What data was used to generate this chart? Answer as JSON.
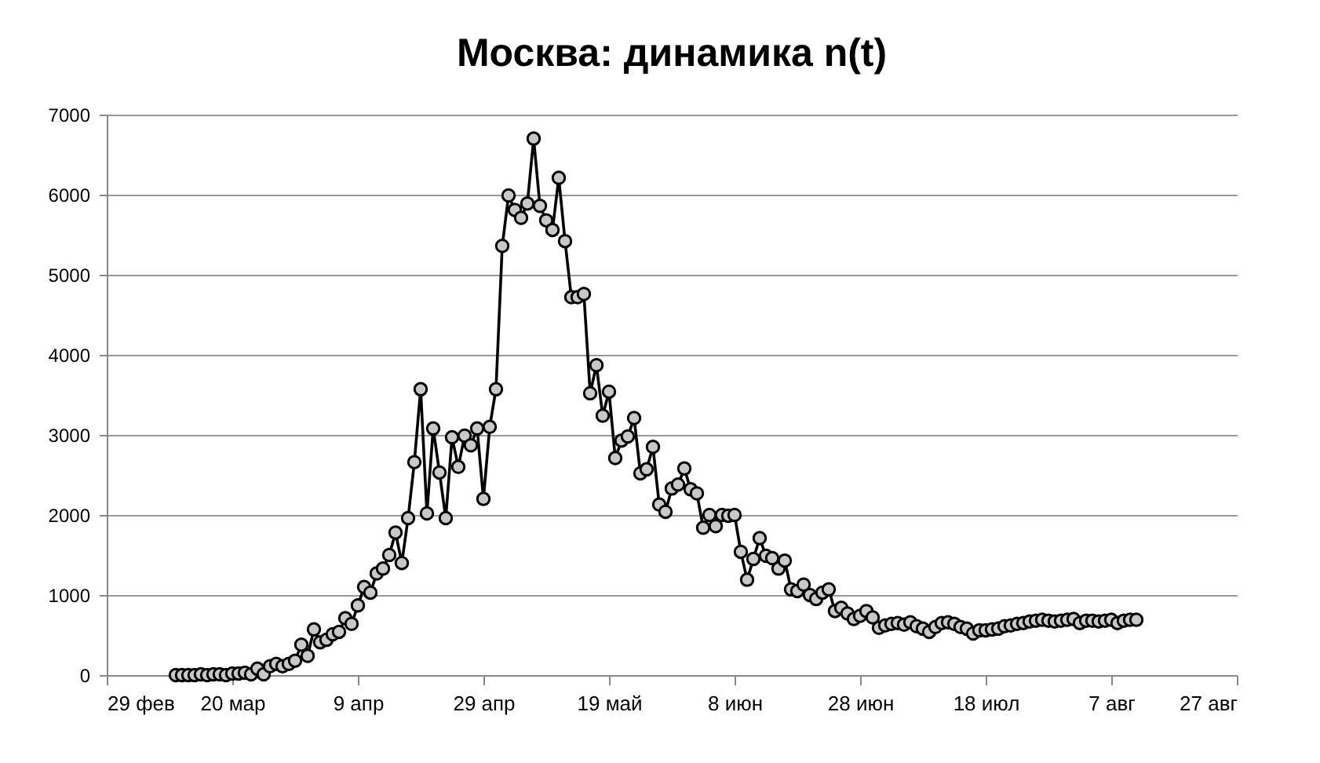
{
  "chart_data": {
    "type": "line",
    "title": "Москва: динамика n(t)",
    "x": [
      "--03-11",
      "--03-12",
      "--03-13",
      "--03-14",
      "--03-15",
      "--03-16",
      "--03-17",
      "--03-18",
      "--03-19",
      "--03-20",
      "--03-21",
      "--03-22",
      "--03-23",
      "--03-24",
      "--03-25",
      "--03-26",
      "--03-27",
      "--03-28",
      "--03-29",
      "--03-30",
      "--03-31",
      "--04-01",
      "--04-02",
      "--04-03",
      "--04-04",
      "--04-05",
      "--04-06",
      "--04-07",
      "--04-08",
      "--04-09",
      "--04-10",
      "--04-11",
      "--04-12",
      "--04-13",
      "--04-14",
      "--04-15",
      "--04-16",
      "--04-17",
      "--04-18",
      "--04-19",
      "--04-20",
      "--04-21",
      "--04-22",
      "--04-23",
      "--04-24",
      "--04-25",
      "--04-26",
      "--04-27",
      "--04-28",
      "--04-29",
      "--04-30",
      "--05-01",
      "--05-02",
      "--05-03",
      "--05-04",
      "--05-05",
      "--05-06",
      "--05-07",
      "--05-08",
      "--05-09",
      "--05-10",
      "--05-11",
      "--05-12",
      "--05-13",
      "--05-14",
      "--05-15",
      "--05-16",
      "--05-17",
      "--05-18",
      "--05-19",
      "--05-20",
      "--05-21",
      "--05-22",
      "--05-23",
      "--05-24",
      "--05-25",
      "--05-26",
      "--05-27",
      "--05-28",
      "--05-29",
      "--05-30",
      "--05-31",
      "--06-01",
      "--06-02",
      "--06-03",
      "--06-04",
      "--06-05",
      "--06-06",
      "--06-07",
      "--06-08",
      "--06-09",
      "--06-10",
      "--06-11",
      "--06-12",
      "--06-13",
      "--06-14",
      "--06-15",
      "--06-16",
      "--06-17",
      "--06-18",
      "--06-19",
      "--06-20",
      "--06-21",
      "--06-22",
      "--06-23",
      "--06-24",
      "--06-25",
      "--06-26",
      "--06-27",
      "--06-28",
      "--06-29",
      "--06-30",
      "--07-01",
      "--07-02",
      "--07-03",
      "--07-04",
      "--07-05",
      "--07-06",
      "--07-07",
      "--07-08",
      "--07-09",
      "--07-10",
      "--07-11",
      "--07-12",
      "--07-13",
      "--07-14",
      "--07-15",
      "--07-16",
      "--07-17",
      "--07-18",
      "--07-19",
      "--07-20",
      "--07-21",
      "--07-22",
      "--07-23",
      "--07-24",
      "--07-25",
      "--07-26",
      "--07-27",
      "--07-28",
      "--07-29",
      "--07-30",
      "--07-31",
      "--08-01",
      "--08-02",
      "--08-03",
      "--08-04",
      "--08-05",
      "--08-06",
      "--08-07",
      "--08-08",
      "--08-09",
      "--08-10",
      "--08-11"
    ],
    "series": [
      {
        "color": "#c8c8c8",
        "values": [
          0,
          0,
          0,
          0,
          10,
          0,
          10,
          10,
          0,
          20,
          20,
          30,
          10,
          80,
          10,
          110,
          140,
          110,
          140,
          180,
          380,
          240,
          570,
          410,
          440,
          510,
          540,
          710,
          640,
          870,
          1100,
          1030,
          1270,
          1330,
          1500,
          1780,
          1400,
          1960,
          2660,
          3570,
          2020,
          3080,
          2530,
          1960,
          2970,
          2600,
          2990,
          2870,
          3080,
          2200,
          3100,
          3570,
          5360,
          5990,
          5810,
          5710,
          5890,
          6700,
          5860,
          5680,
          5560,
          6210,
          5420,
          4720,
          4720,
          4760,
          3520,
          3870,
          3240,
          3540,
          2710,
          2930,
          2980,
          3210,
          2520,
          2570,
          2850,
          2130,
          2040,
          2330,
          2380,
          2580,
          2320,
          2270,
          1840,
          2000,
          1860,
          2000,
          1990,
          2000,
          1540,
          1190,
          1450,
          1710,
          1490,
          1460,
          1330,
          1430,
          1070,
          1050,
          1130,
          1000,
          950,
          1030,
          1070,
          800,
          840,
          770,
          700,
          740,
          800,
          720,
          590,
          620,
          640,
          650,
          630,
          660,
          610,
          580,
          540,
          600,
          650,
          660,
          640,
          600,
          580,
          520,
          560,
          560,
          570,
          580,
          610,
          620,
          640,
          650,
          670,
          680,
          690,
          680,
          670,
          680,
          690,
          700,
          650,
          680,
          680,
          670,
          680,
          690,
          650,
          680,
          690,
          690
        ]
      }
    ],
    "xlim": [
      "--02-29",
      "--08-27"
    ],
    "xticks": [
      {
        "value": "--02-29",
        "label": "29 фев"
      },
      {
        "value": "--03-20",
        "label": "20 мар"
      },
      {
        "value": "--04-09",
        "label": "9 апр"
      },
      {
        "value": "--04-29",
        "label": "29 апр"
      },
      {
        "value": "--05-19",
        "label": "19 май"
      },
      {
        "value": "--06-08",
        "label": "8 июн"
      },
      {
        "value": "--06-28",
        "label": "28 июн"
      },
      {
        "value": "--07-18",
        "label": "18 июл"
      },
      {
        "value": "--08-07",
        "label": "7 авг"
      },
      {
        "value": "--08-27",
        "label": "27 авг"
      }
    ],
    "ylim": [
      0,
      7000
    ],
    "yticks": [
      0,
      1000,
      2000,
      3000,
      4000,
      5000,
      6000,
      7000
    ],
    "grid": "y",
    "marker": "circle",
    "line_style": "solid",
    "legend": false
  }
}
